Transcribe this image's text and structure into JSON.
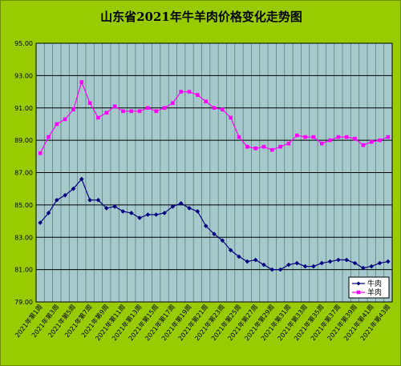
{
  "title": "山东省2021年牛羊肉价格变化走势图",
  "chart_data": {
    "type": "line",
    "ylim": [
      79,
      95
    ],
    "yticks": [
      "79.00",
      "81.00",
      "83.00",
      "85.00",
      "87.00",
      "89.00",
      "91.00",
      "93.00",
      "95.00"
    ],
    "grid": true,
    "legend_position": "bottom-right",
    "x": [
      "2021年第1周",
      "2021年第2周",
      "2021年第3周",
      "2021年第4周",
      "2021年第5周",
      "2021年第6周",
      "2021年第7周",
      "2021年第8周",
      "2021年第9周",
      "2021年第10周",
      "2021年第11周",
      "2021年第12周",
      "2021年第13周",
      "2021年第14周",
      "2021年第15周",
      "2021年第16周",
      "2021年第17周",
      "2021年第18周",
      "2021年第19周",
      "2021年第20周",
      "2021年第21周",
      "2021年第22周",
      "2021年第23周",
      "2021年第24周",
      "2021年第25周",
      "2021年第26周",
      "2021年第27周",
      "2021年第28周",
      "2021年第29周",
      "2021年第30周",
      "2021年第31周",
      "2021年第32周",
      "2021年第33周",
      "2021年第34周",
      "2021年第35周",
      "2021年第36周",
      "2021年第37周",
      "2021年第38周",
      "2021年第39周",
      "2021年第40周",
      "2021年第41周",
      "2021年第42周",
      "2021年第43周"
    ],
    "xtick_labels": [
      "2021年第1周",
      "2021年第3周",
      "2021年第5周",
      "2021年第7周",
      "2021年第9周",
      "2021年第11周",
      "2021年第13周",
      "2021年第15周",
      "2021年第17周",
      "2021年第19周",
      "2021年第21周",
      "2021年第23周",
      "2021年第25周",
      "2021年第27周",
      "2021年第29周",
      "2021年第31周",
      "2021年第33周",
      "2021年第35周",
      "2021年第37周",
      "2021年第39周",
      "2021年第41周",
      "2021年第43周"
    ],
    "series": [
      {
        "name": "牛肉",
        "color": "#000080",
        "marker": "diamond",
        "values": [
          83.9,
          84.5,
          85.3,
          85.6,
          86.0,
          86.6,
          85.3,
          85.3,
          84.8,
          84.9,
          84.6,
          84.5,
          84.2,
          84.4,
          84.4,
          84.5,
          84.9,
          85.1,
          84.8,
          84.6,
          83.7,
          83.2,
          82.8,
          82.2,
          81.8,
          81.5,
          81.6,
          81.3,
          81.0,
          81.0,
          81.3,
          81.4,
          81.2,
          81.2,
          81.4,
          81.5,
          81.6,
          81.6,
          81.4,
          81.1,
          81.2,
          81.4,
          81.5
        ]
      },
      {
        "name": "羊肉",
        "color": "#ff00ff",
        "marker": "square",
        "values": [
          88.2,
          89.2,
          90.0,
          90.3,
          90.9,
          92.6,
          91.3,
          90.4,
          90.7,
          91.1,
          90.8,
          90.8,
          90.8,
          91.0,
          90.8,
          91.0,
          91.3,
          92.0,
          92.0,
          91.8,
          91.4,
          91.0,
          90.9,
          90.4,
          89.2,
          88.6,
          88.5,
          88.6,
          88.4,
          88.6,
          88.8,
          89.3,
          89.2,
          89.2,
          88.8,
          89.0,
          89.2,
          89.2,
          89.1,
          88.7,
          88.9,
          89.0,
          89.2
        ]
      }
    ]
  }
}
